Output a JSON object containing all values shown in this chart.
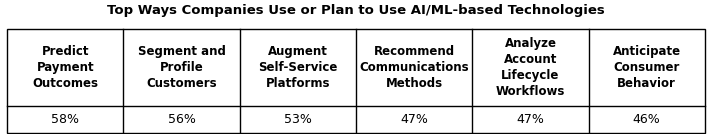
{
  "title": "Top Ways Companies Use or Plan to Use AI/ML-based Technologies",
  "columns": [
    "Predict\nPayment\nOutcomes",
    "Segment and\nProfile\nCustomers",
    "Augment\nSelf-Service\nPlatforms",
    "Recommend\nCommunications\nMethods",
    "Analyze\nAccount\nLifecycle\nWorkflows",
    "Anticipate\nConsumer\nBehavior"
  ],
  "values": [
    "58%",
    "56%",
    "53%",
    "47%",
    "47%",
    "46%"
  ],
  "title_fontsize": 9.5,
  "header_fontsize": 8.5,
  "value_fontsize": 9.0,
  "bg_color": "#ffffff",
  "border_color": "#000000",
  "text_color": "#000000",
  "fig_width": 7.12,
  "fig_height": 1.34
}
